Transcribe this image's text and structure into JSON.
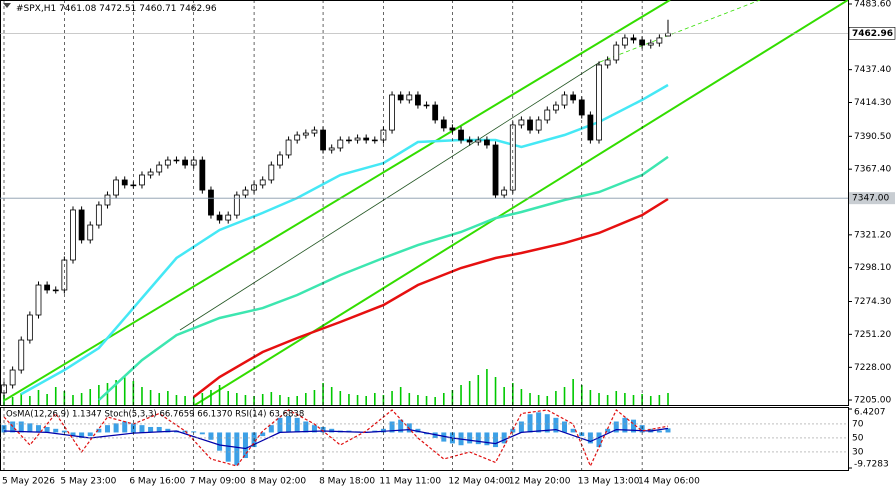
{
  "chart_data": [
    {
      "type": "candlestick",
      "symbol": "#SPX,H1",
      "categories": [
        "5 May 2026",
        null,
        null,
        null,
        null,
        null,
        null,
        "5 May 23:00",
        null,
        null,
        null,
        null,
        null,
        null,
        null,
        "6 May 16:00",
        null,
        null,
        null,
        null,
        null,
        null,
        "7 May 09:00",
        null,
        null,
        null,
        null,
        null,
        null,
        "8 May 02:00",
        null,
        null,
        null,
        null,
        null,
        null,
        null,
        "8 May 18:00",
        null,
        null,
        null,
        null,
        null,
        null,
        "11 May 11:00",
        null,
        null,
        null,
        null,
        null,
        null,
        null,
        "12 May 04:00",
        null,
        null,
        null,
        null,
        null,
        null,
        "12 May 20:00",
        null,
        null,
        null,
        null,
        null,
        null,
        null,
        "13 May 13:00",
        null,
        null,
        null,
        null,
        null,
        null,
        "14 May 06:00",
        null,
        null,
        null
      ],
      "open": [
        7210.0,
        7215.6,
        7226.1,
        7247.2,
        7264.8,
        7285.9,
        7282.4,
        7282.4,
        7303.5,
        7338.7,
        7317.6,
        7328.1,
        7342.2,
        7349.2,
        7359.8,
        7356.3,
        7356.3,
        7363.3,
        7365.4,
        7370.3,
        7373.8,
        7373.8,
        7370.3,
        7373.8,
        7352.7,
        7335.1,
        7331.6,
        7335.1,
        7349.2,
        7352.7,
        7356.3,
        7359.8,
        7370.3,
        7377.4,
        7387.9,
        7391.4,
        7392.8,
        7394.9,
        7380.9,
        7382.3,
        7387.9,
        7387.9,
        7389.3,
        7387.9,
        7387.9,
        7394.9,
        7419.6,
        7416.1,
        7419.6,
        7412.5,
        7412.5,
        7402.0,
        7396.4,
        7394.9,
        7387.9,
        7386.5,
        7387.9,
        7384.4,
        7349.2,
        7352.7,
        7398.5,
        7402.0,
        7394.9,
        7402.0,
        7409.0,
        7412.5,
        7419.6,
        7416.1,
        7405.5,
        7387.9,
        7440.7,
        7444.2,
        7454.7,
        7459.7,
        7458.3,
        7454.7,
        7456.1,
        7461.08
      ],
      "high": [
        7218.1,
        7228.6,
        7249.7,
        7267.3,
        7288.4,
        7288.4,
        7284.9,
        7306.0,
        7341.2,
        7341.2,
        7330.6,
        7344.7,
        7351.7,
        7362.3,
        7362.3,
        7358.8,
        7365.8,
        7367.9,
        7372.8,
        7376.3,
        7376.3,
        7376.3,
        7376.3,
        7376.3,
        7355.2,
        7337.6,
        7337.6,
        7351.7,
        7355.2,
        7358.8,
        7362.3,
        7372.8,
        7379.9,
        7390.4,
        7393.9,
        7395.3,
        7397.4,
        7397.4,
        7384.8,
        7390.4,
        7390.4,
        7391.8,
        7391.8,
        7390.4,
        7397.4,
        7422.1,
        7422.1,
        7422.1,
        7422.1,
        7415.0,
        7415.0,
        7404.5,
        7398.9,
        7397.4,
        7390.4,
        7390.4,
        7390.4,
        7386.9,
        7355.2,
        7401.0,
        7404.5,
        7404.5,
        7404.5,
        7411.5,
        7415.0,
        7422.1,
        7422.1,
        7418.6,
        7408.0,
        7443.2,
        7446.7,
        7457.2,
        7462.2,
        7462.2,
        7460.8,
        7458.6,
        7462.2,
        7472.51
      ],
      "low": [
        7207.5,
        7213.1,
        7223.6,
        7244.7,
        7262.3,
        7279.9,
        7279.9,
        7279.9,
        7301.0,
        7315.1,
        7315.1,
        7325.6,
        7339.7,
        7346.7,
        7353.8,
        7353.8,
        7353.8,
        7360.8,
        7362.9,
        7367.8,
        7371.3,
        7367.8,
        7367.8,
        7350.2,
        7332.6,
        7329.1,
        7329.1,
        7332.6,
        7346.7,
        7350.2,
        7353.8,
        7357.3,
        7367.8,
        7374.9,
        7385.4,
        7388.9,
        7390.3,
        7378.4,
        7378.4,
        7379.8,
        7385.4,
        7385.4,
        7385.4,
        7385.4,
        7385.4,
        7392.4,
        7413.6,
        7413.6,
        7410.0,
        7410.0,
        7399.5,
        7393.9,
        7392.4,
        7385.4,
        7384.0,
        7384.0,
        7381.9,
        7346.7,
        7346.7,
        7350.2,
        7396.0,
        7392.4,
        7392.4,
        7399.5,
        7406.5,
        7410.0,
        7413.6,
        7403.0,
        7385.4,
        7385.4,
        7438.2,
        7441.7,
        7452.2,
        7455.8,
        7452.2,
        7452.2,
        7453.6,
        7460.71
      ],
      "close": [
        7215.6,
        7226.1,
        7247.2,
        7264.8,
        7285.9,
        7282.4,
        7282.4,
        7303.5,
        7338.7,
        7317.6,
        7328.1,
        7342.2,
        7349.2,
        7359.8,
        7356.3,
        7356.3,
        7363.3,
        7365.4,
        7370.3,
        7373.8,
        7373.8,
        7370.3,
        7373.8,
        7352.7,
        7335.1,
        7331.6,
        7335.1,
        7349.2,
        7352.7,
        7356.3,
        7359.8,
        7370.3,
        7377.4,
        7387.9,
        7391.4,
        7392.8,
        7394.9,
        7380.9,
        7382.3,
        7387.9,
        7387.9,
        7389.3,
        7387.9,
        7387.9,
        7394.9,
        7419.6,
        7416.1,
        7419.6,
        7412.5,
        7412.5,
        7402.0,
        7396.4,
        7394.9,
        7387.9,
        7386.5,
        7387.9,
        7384.4,
        7349.2,
        7352.7,
        7398.5,
        7402.0,
        7394.9,
        7402.0,
        7409.0,
        7412.5,
        7419.6,
        7416.1,
        7405.5,
        7387.9,
        7440.7,
        7444.2,
        7454.7,
        7459.7,
        7458.3,
        7454.7,
        7456.1,
        7459.7,
        7462.96
      ],
      "volume": [
        10,
        8,
        12,
        9,
        15,
        11,
        18,
        14,
        10,
        12,
        16,
        20,
        22,
        25,
        28,
        24,
        18,
        15,
        12,
        14,
        10,
        9,
        8,
        12,
        15,
        20,
        14,
        12,
        10,
        9,
        11,
        13,
        10,
        8,
        9,
        12,
        15,
        22,
        18,
        14,
        11,
        10,
        9,
        12,
        10,
        14,
        18,
        12,
        10,
        9,
        8,
        12,
        15,
        20,
        24,
        30,
        36,
        28,
        18,
        22,
        16,
        12,
        10,
        9,
        14,
        18,
        26,
        20,
        15,
        12,
        10,
        14,
        12,
        10,
        11,
        9,
        10,
        12
      ],
      "volume_color": "#00c800",
      "up_color": "#ffffff",
      "down_color": "#000000",
      "overlays": [
        {
          "color": "#45e8f5",
          "x": [
            2,
            7,
            11,
            16,
            20,
            25,
            30,
            34,
            39,
            44,
            48,
            53,
            57,
            60,
            65,
            69,
            74,
            77
          ],
          "values": [
            7209.2,
            7226.1,
            7241.6,
            7276.8,
            7304.9,
            7324.6,
            7336.6,
            7347.1,
            7363.3,
            7371.7,
            7386.5,
            7387.9,
            7387.9,
            7383.0,
            7391.4,
            7400.6,
            7416.1,
            7426.6
          ]
        },
        {
          "color": "#3de6b0",
          "x": [
            11,
            16,
            20,
            25,
            30,
            34,
            39,
            44,
            48,
            53,
            57,
            60,
            65,
            69,
            74,
            77
          ],
          "values": [
            7205.0,
            7233.1,
            7250.7,
            7262.7,
            7269.7,
            7278.9,
            7292.9,
            7304.9,
            7314.0,
            7323.2,
            7333.0,
            7337.3,
            7345.7,
            7351.3,
            7363.3,
            7376.0
          ]
        },
        {
          "color": "#e61010",
          "x": [
            22,
            25,
            30,
            34,
            39,
            44,
            48,
            53,
            57,
            60,
            65,
            69,
            74,
            77
          ],
          "values": [
            7207.1,
            7221.2,
            7238.8,
            7248.6,
            7259.9,
            7271.8,
            7285.9,
            7297.9,
            7304.9,
            7308.4,
            7315.4,
            7322.5,
            7335.1,
            7346.4
          ]
        }
      ],
      "ylim": [
        7201.5,
        7486.4
      ],
      "yticks": [
        {
          "value": 7483.6,
          "label": "7483.60"
        },
        {
          "value": 7437.4,
          "label": "7437.40"
        },
        {
          "value": 7414.3,
          "label": "7414.30"
        },
        {
          "value": 7390.5,
          "label": "7390.50"
        },
        {
          "value": 7367.4,
          "label": "7367.40"
        },
        {
          "value": 7321.2,
          "label": "7321.20"
        },
        {
          "value": 7298.1,
          "label": "7298.10"
        },
        {
          "value": 7274.3,
          "label": "7274.30"
        },
        {
          "value": 7251.2,
          "label": "7251.20"
        },
        {
          "value": 7228.0,
          "label": "7228.00"
        },
        {
          "value": 7205.0,
          "label": "7205.00"
        }
      ],
      "hline": {
        "value": 7347.0,
        "label": "7347.00"
      },
      "grid": true
    },
    {
      "type": "bar",
      "title": "OsMA(12,26,9) 1.1347  Stoch(5,3,3) 66.7659 66.1370  RSI(14) 63.6838",
      "values": [
        2,
        3,
        3,
        2.5,
        2,
        1.5,
        1,
        0.5,
        -1,
        -1.5,
        -1,
        1,
        2,
        2.5,
        3,
        2.5,
        2,
        1.5,
        1.5,
        1,
        0.5,
        0.5,
        0.3,
        -0.5,
        -2,
        -5,
        -8,
        -9,
        -7,
        -4,
        -1,
        2,
        4,
        4.5,
        4,
        3,
        2,
        1.5,
        1,
        0.5,
        0.5,
        0.3,
        0.2,
        0.5,
        1,
        3,
        3.5,
        2.5,
        1,
        -0.5,
        -1.5,
        -2.5,
        -3,
        -3.5,
        -3,
        -3.2,
        -3.5,
        -4,
        -3,
        1,
        3,
        5,
        5.5,
        5,
        4,
        3,
        1,
        -1,
        -3,
        -4,
        1,
        3,
        4,
        3.5,
        2,
        1,
        0.5,
        1.1347
      ],
      "color": "#3ca0e6",
      "ylim": [
        -9.7283,
        6.4207
      ],
      "yticks": [
        6.4207,
        -9.7283
      ],
      "y2lim": [
        7.1,
        91.4
      ],
      "y2ticks": [
        70,
        50,
        30
      ],
      "series": [
        {
          "color": "#0000aa",
          "axis": "y2",
          "x": [
            0,
            5,
            10,
            15,
            20,
            25,
            28,
            32,
            37,
            42,
            47,
            52,
            57,
            60,
            64,
            68,
            71,
            75,
            77
          ],
          "values": [
            60,
            58,
            50,
            57,
            60,
            40,
            35,
            58,
            60,
            58,
            62,
            50,
            42,
            58,
            62,
            45,
            62,
            60,
            63.6838
          ]
        },
        {
          "color": "#e01010",
          "axis": "y2",
          "x": [
            0,
            3,
            6,
            9,
            12,
            15,
            18,
            21,
            24,
            27,
            30,
            33,
            36,
            39,
            42,
            45,
            48,
            51,
            54,
            57,
            60,
            63,
            66,
            68,
            71,
            74,
            77
          ],
          "values": [
            80,
            40,
            85,
            30,
            80,
            70,
            85,
            60,
            20,
            10,
            60,
            90,
            70,
            40,
            60,
            90,
            50,
            20,
            30,
            15,
            85,
            90,
            70,
            10,
            90,
            60,
            66.7659
          ]
        }
      ]
    }
  ]
}
